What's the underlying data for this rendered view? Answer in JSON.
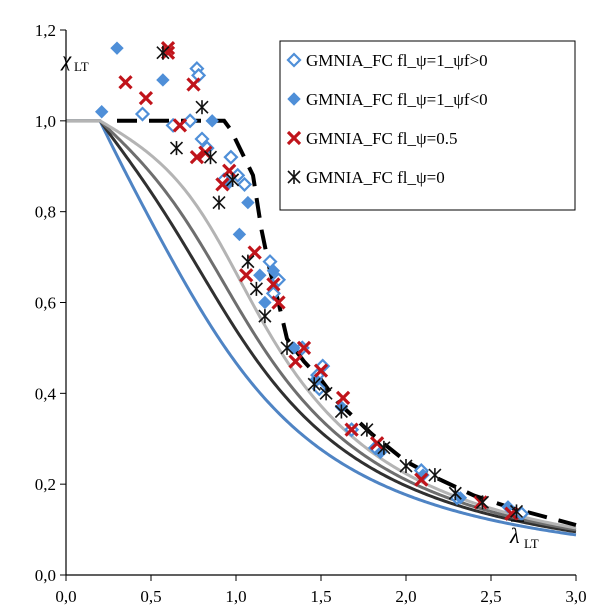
{
  "chart_data": {
    "type": "scatter",
    "xlim": [
      0,
      3
    ],
    "ylim": [
      0,
      1.2
    ],
    "x_ticks": [
      0,
      0.5,
      1,
      1.5,
      2,
      2.5,
      3
    ],
    "x_tick_labels": [
      "0,0",
      "0,5",
      "1,0",
      "1,5",
      "2,0",
      "2,5",
      "3,0"
    ],
    "y_ticks": [
      0,
      0.2,
      0.4,
      0.6,
      0.8,
      1,
      1.2
    ],
    "y_tick_labels": [
      "0,0",
      "0,2",
      "0,4",
      "0,6",
      "0,8",
      "1,0",
      "1,2"
    ],
    "ylabel_main": "χ",
    "ylabel_sub": "LT",
    "xlabel_main": "λ",
    "xlabel_sub": "LT",
    "grid": false,
    "legend_position": "top-right",
    "colors": {
      "blue_marker": "#4f8fd8",
      "red_marker": "#c0141b",
      "black_marker": "#111111",
      "dashed": "#000000"
    },
    "series": [
      {
        "name": "GMNIA_FC fl_ψ=1_ψf>0",
        "marker": "diamond-open",
        "color": "#4f8fd8",
        "points": [
          [
            0.45,
            1.015
          ],
          [
            0.63,
            0.99
          ],
          [
            0.73,
            1.0
          ],
          [
            0.77,
            1.115
          ],
          [
            0.78,
            1.1
          ],
          [
            0.8,
            0.96
          ],
          [
            0.83,
            0.94
          ],
          [
            0.93,
            0.87
          ],
          [
            0.97,
            0.92
          ],
          [
            1.01,
            0.88
          ],
          [
            1.05,
            0.86
          ],
          [
            1.2,
            0.69
          ],
          [
            1.22,
            0.62
          ],
          [
            1.25,
            0.65
          ],
          [
            1.39,
            0.5
          ],
          [
            1.48,
            0.44
          ],
          [
            1.49,
            0.41
          ],
          [
            1.51,
            0.46
          ],
          [
            1.68,
            0.32
          ],
          [
            1.82,
            0.28
          ],
          [
            2.09,
            0.23
          ],
          [
            2.3,
            0.17
          ],
          [
            2.68,
            0.135
          ]
        ]
      },
      {
        "name": "GMNIA_FC fl_ψ=1_ψf<0",
        "marker": "diamond-filled",
        "color": "#4f8fd8",
        "points": [
          [
            0.21,
            1.02
          ],
          [
            0.3,
            1.16
          ],
          [
            0.57,
            1.09
          ],
          [
            0.86,
            1.0
          ],
          [
            0.95,
            0.86
          ],
          [
            1.02,
            0.75
          ],
          [
            1.07,
            0.82
          ],
          [
            1.14,
            0.66
          ],
          [
            1.17,
            0.6
          ],
          [
            1.22,
            0.67
          ],
          [
            1.34,
            0.5
          ],
          [
            1.47,
            0.43
          ],
          [
            1.62,
            0.37
          ],
          [
            1.85,
            0.27
          ],
          [
            2.1,
            0.22
          ],
          [
            2.32,
            0.17
          ],
          [
            2.6,
            0.15
          ]
        ]
      },
      {
        "name": "GMNIA_FC fl_ψ=0.5",
        "marker": "x",
        "color": "#c0141b",
        "points": [
          [
            0.35,
            1.085
          ],
          [
            0.47,
            1.05
          ],
          [
            0.6,
            1.16
          ],
          [
            0.6,
            1.15
          ],
          [
            0.67,
            0.99
          ],
          [
            0.75,
            1.08
          ],
          [
            0.77,
            0.92
          ],
          [
            0.82,
            0.93
          ],
          [
            0.92,
            0.86
          ],
          [
            0.96,
            0.89
          ],
          [
            1.06,
            0.66
          ],
          [
            1.11,
            0.71
          ],
          [
            1.22,
            0.64
          ],
          [
            1.25,
            0.6
          ],
          [
            1.35,
            0.47
          ],
          [
            1.4,
            0.5
          ],
          [
            1.5,
            0.45
          ],
          [
            1.63,
            0.39
          ],
          [
            1.68,
            0.32
          ],
          [
            1.83,
            0.29
          ],
          [
            2.09,
            0.21
          ],
          [
            2.44,
            0.16
          ],
          [
            2.62,
            0.135
          ]
        ]
      },
      {
        "name": "GMNIA_FC fl_ψ=0",
        "marker": "asterisk",
        "color": "#111111",
        "points": [
          [
            0.57,
            1.15
          ],
          [
            0.65,
            0.94
          ],
          [
            0.8,
            1.03
          ],
          [
            0.85,
            0.92
          ],
          [
            0.9,
            0.82
          ],
          [
            0.98,
            0.87
          ],
          [
            1.07,
            0.69
          ],
          [
            1.12,
            0.63
          ],
          [
            1.17,
            0.57
          ],
          [
            1.3,
            0.5
          ],
          [
            1.46,
            0.42
          ],
          [
            1.53,
            0.4
          ],
          [
            1.62,
            0.36
          ],
          [
            1.77,
            0.32
          ],
          [
            1.87,
            0.28
          ],
          [
            2.0,
            0.24
          ],
          [
            2.17,
            0.22
          ],
          [
            2.29,
            0.18
          ],
          [
            2.45,
            0.16
          ],
          [
            2.65,
            0.14
          ]
        ]
      }
    ],
    "curves": [
      {
        "color": "#4f84c4",
        "alpha": 0.76
      },
      {
        "color": "#303030",
        "alpha": 0.49
      },
      {
        "color": "#6e6e6e",
        "alpha": 0.34
      },
      {
        "color": "#b4b4b4",
        "alpha": 0.21
      }
    ],
    "dashed_curve": {
      "color": "#000000",
      "points": [
        [
          0.3,
          1.0
        ],
        [
          0.93,
          1.0
        ],
        [
          0.97,
          0.98
        ],
        [
          1.1,
          0.88
        ],
        [
          1.15,
          0.76
        ],
        [
          1.2,
          0.67
        ],
        [
          1.25,
          0.6
        ],
        [
          1.3,
          0.52
        ],
        [
          1.4,
          0.47
        ],
        [
          1.5,
          0.43
        ],
        [
          1.6,
          0.38
        ],
        [
          1.8,
          0.31
        ],
        [
          2.0,
          0.25
        ],
        [
          2.2,
          0.21
        ],
        [
          2.4,
          0.175
        ],
        [
          2.6,
          0.15
        ],
        [
          2.8,
          0.13
        ],
        [
          3.0,
          0.11
        ]
      ]
    }
  }
}
